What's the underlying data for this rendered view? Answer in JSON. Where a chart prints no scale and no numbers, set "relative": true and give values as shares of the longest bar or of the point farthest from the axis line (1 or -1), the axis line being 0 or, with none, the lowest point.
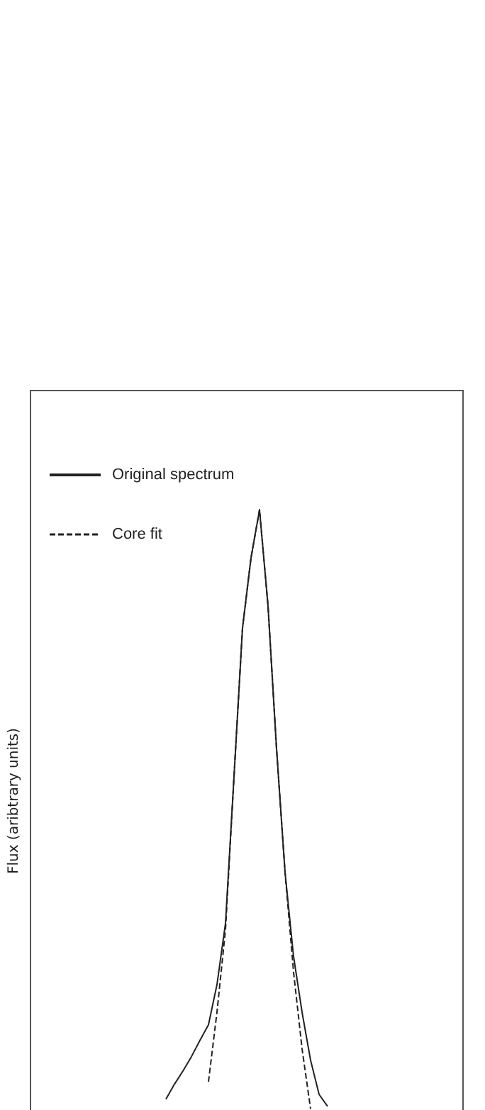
{
  "chart_data": {
    "type": "line",
    "relative": true,
    "ylabel": "Flux (aribtrary units)",
    "legend": "top left",
    "grid": false,
    "marker": "none",
    "categories": [
      null,
      null,
      null,
      null,
      null,
      null,
      null,
      null,
      null,
      null,
      null,
      null,
      null,
      null,
      null,
      null,
      null,
      null,
      null,
      null,
      null,
      null,
      null,
      null,
      null,
      null,
      null,
      null,
      null,
      null,
      null,
      null,
      null,
      null,
      null,
      null,
      null,
      null,
      null,
      null,
      null,
      null,
      null,
      null,
      null,
      null,
      null,
      null,
      null,
      null,
      null,
      null
    ],
    "series": [
      {
        "name": "Original spectrum",
        "color": "#222222",
        "line_style": "solid",
        "values": [
          null,
          null,
          null,
          null,
          null,
          null,
          null,
          null,
          null,
          null,
          null,
          null,
          null,
          null,
          null,
          null,
          0.018,
          0.043,
          0.065,
          0.089,
          0.116,
          0.142,
          0.209,
          0.311,
          0.555,
          0.803,
          0.92,
          1,
          0.84,
          0.602,
          0.396,
          0.256,
          0.163,
          0.083,
          0.026,
          0.006,
          null,
          null,
          null,
          null,
          null,
          null,
          null,
          null,
          null,
          null,
          null,
          null,
          null,
          null,
          null,
          null
        ]
      },
      {
        "name": "Core fit",
        "color": "#222222",
        "line_style": "dashed",
        "values": [
          null,
          null,
          null,
          null,
          null,
          null,
          null,
          null,
          null,
          null,
          null,
          null,
          null,
          null,
          null,
          null,
          null,
          null,
          null,
          null,
          null,
          0.047,
          0.163,
          0.3,
          0.555,
          0.803,
          0.92,
          1,
          0.84,
          0.602,
          0.396,
          0.23,
          0.102,
          0.002,
          null,
          null,
          null,
          null,
          null,
          null,
          null,
          null,
          null,
          null,
          null,
          null,
          null,
          null,
          null,
          null,
          null,
          null
        ]
      }
    ]
  }
}
